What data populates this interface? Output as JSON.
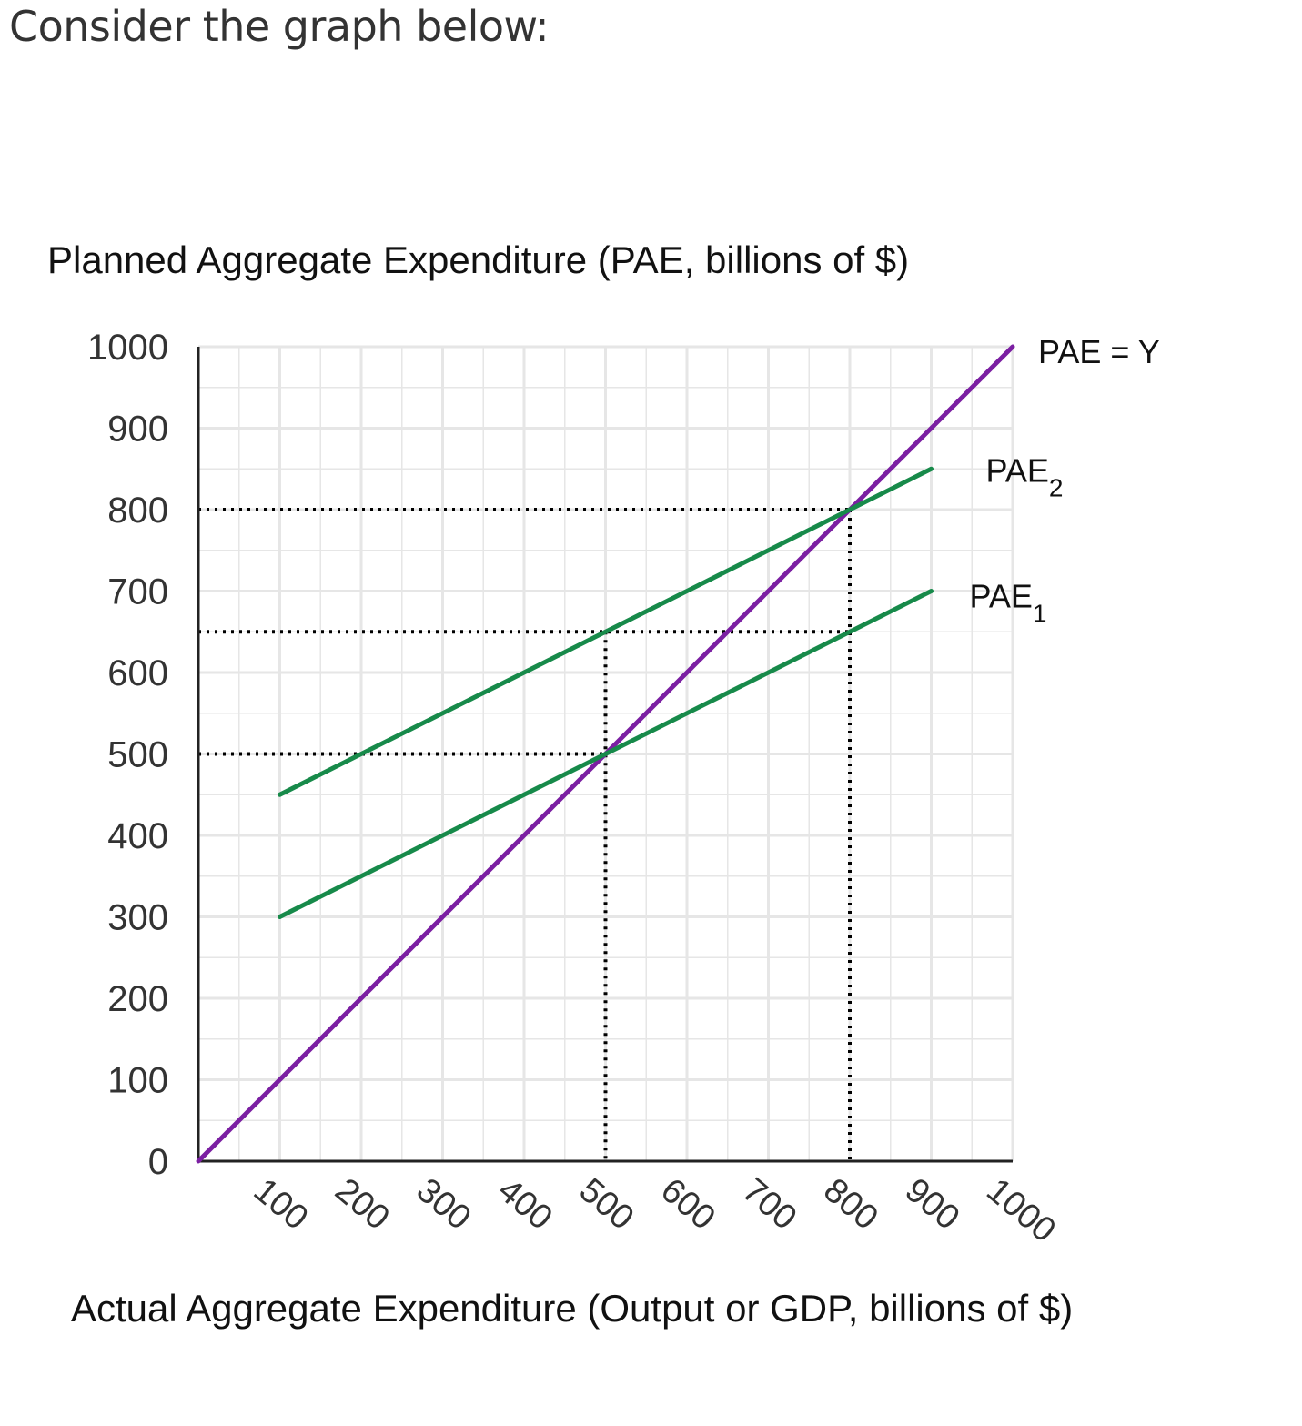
{
  "page": {
    "prompt": "Consider the graph below:"
  },
  "colors": {
    "identity_line": "#7b1fa2",
    "pae_lines": "#178a4a",
    "grid": "#e6e6e6",
    "axis": "#222222",
    "guides": "#000000"
  },
  "chart_data": {
    "type": "line",
    "title": "",
    "ylabel": "Planned Aggregate Expenditure (PAE, billions of $)",
    "xlabel": "Actual Aggregate Expenditure (Output or GDP, billions of $)",
    "xlim": [
      0,
      1000
    ],
    "ylim": [
      0,
      1000
    ],
    "x_ticks": [
      "100",
      "200",
      "300",
      "400",
      "500",
      "600",
      "700",
      "800",
      "900",
      "1000"
    ],
    "y_ticks": [
      "0",
      "100",
      "200",
      "300",
      "400",
      "500",
      "600",
      "700",
      "800",
      "900",
      "1000"
    ],
    "grid": true,
    "series": [
      {
        "name": "PAE = Y",
        "label_main": "PAE = Y",
        "label_sub": "",
        "x": [
          0,
          1000
        ],
        "y": [
          0,
          1000
        ],
        "color": "#7b1fa2"
      },
      {
        "name": "PAE2",
        "label_main": "PAE",
        "label_sub": "2",
        "x": [
          100,
          900
        ],
        "y": [
          450,
          850
        ],
        "color": "#178a4a"
      },
      {
        "name": "PAE1",
        "label_main": "PAE",
        "label_sub": "1",
        "x": [
          100,
          900
        ],
        "y": [
          300,
          700
        ],
        "color": "#178a4a"
      }
    ],
    "guide_lines": {
      "horizontal": [
        {
          "y": 800,
          "x_end": 800
        },
        {
          "y": 650,
          "x_end": 800
        },
        {
          "y": 500,
          "x_end": 500
        }
      ],
      "vertical": [
        {
          "x": 500,
          "y_end": 650
        },
        {
          "x": 800,
          "y_end": 800
        }
      ]
    }
  }
}
